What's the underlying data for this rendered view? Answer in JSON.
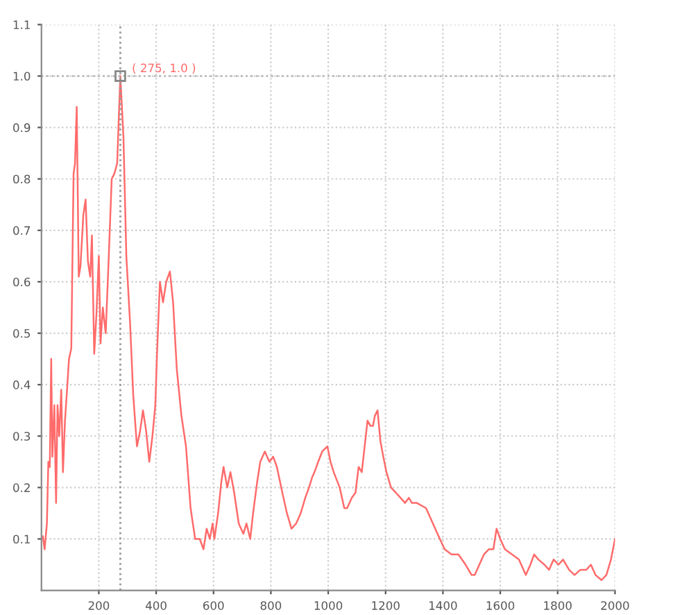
{
  "chart_data": {
    "type": "line",
    "x": [
      5,
      11,
      19,
      24,
      29,
      34,
      38,
      45,
      51,
      56,
      62,
      69,
      75,
      82,
      88,
      96,
      104,
      112,
      117,
      123,
      130,
      136,
      146,
      154,
      162,
      170,
      176,
      184,
      192,
      200,
      206,
      214,
      224,
      232,
      245,
      254,
      264,
      275,
      286,
      296,
      309,
      320,
      333,
      344,
      354,
      365,
      376,
      387,
      397,
      403,
      413,
      424,
      435,
      448,
      459,
      472,
      488,
      504,
      520,
      536,
      552,
      565,
      576,
      587,
      597,
      603,
      616,
      627,
      635,
      648,
      659,
      672,
      688,
      704,
      715,
      728,
      738,
      752,
      763,
      779,
      795,
      808,
      821,
      840,
      856,
      872,
      888,
      904,
      920,
      933,
      944,
      952,
      965,
      979,
      997,
      1008,
      1019,
      1040,
      1056,
      1066,
      1082,
      1095,
      1106,
      1117,
      1127,
      1137,
      1147,
      1156,
      1163,
      1172,
      1182,
      1192,
      1203,
      1219,
      1236,
      1252,
      1268,
      1281,
      1292,
      1309,
      1341,
      1357,
      1381,
      1406,
      1430,
      1454,
      1479,
      1500,
      1511,
      1527,
      1543,
      1560,
      1576,
      1587,
      1600,
      1616,
      1641,
      1665,
      1689,
      1705,
      1718,
      1733,
      1754,
      1770,
      1786,
      1803,
      1819,
      1840,
      1859,
      1879,
      1900,
      1916,
      1932,
      1953,
      1970,
      1986,
      2000
    ],
    "series": [
      {
        "color": "#ff6b6b",
        "values": [
          0.105,
          0.08,
          0.13,
          0.25,
          0.24,
          0.45,
          0.26,
          0.36,
          0.17,
          0.36,
          0.3,
          0.39,
          0.23,
          0.33,
          0.38,
          0.45,
          0.47,
          0.81,
          0.83,
          0.94,
          0.61,
          0.63,
          0.73,
          0.76,
          0.64,
          0.61,
          0.69,
          0.46,
          0.54,
          0.65,
          0.48,
          0.55,
          0.5,
          0.61,
          0.8,
          0.81,
          0.83,
          1.0,
          0.88,
          0.65,
          0.52,
          0.38,
          0.28,
          0.31,
          0.35,
          0.31,
          0.25,
          0.3,
          0.36,
          0.46,
          0.6,
          0.56,
          0.6,
          0.62,
          0.56,
          0.43,
          0.34,
          0.28,
          0.16,
          0.1,
          0.1,
          0.08,
          0.12,
          0.1,
          0.13,
          0.1,
          0.15,
          0.21,
          0.24,
          0.2,
          0.23,
          0.19,
          0.13,
          0.11,
          0.13,
          0.1,
          0.15,
          0.21,
          0.25,
          0.27,
          0.25,
          0.26,
          0.24,
          0.19,
          0.15,
          0.12,
          0.13,
          0.15,
          0.18,
          0.2,
          0.22,
          0.23,
          0.25,
          0.27,
          0.28,
          0.25,
          0.23,
          0.2,
          0.16,
          0.16,
          0.18,
          0.19,
          0.24,
          0.23,
          0.28,
          0.33,
          0.32,
          0.32,
          0.34,
          0.35,
          0.29,
          0.26,
          0.23,
          0.2,
          0.19,
          0.18,
          0.17,
          0.18,
          0.17,
          0.17,
          0.16,
          0.14,
          0.11,
          0.08,
          0.07,
          0.07,
          0.05,
          0.03,
          0.03,
          0.05,
          0.07,
          0.08,
          0.08,
          0.12,
          0.1,
          0.08,
          0.07,
          0.06,
          0.03,
          0.05,
          0.07,
          0.06,
          0.05,
          0.04,
          0.06,
          0.05,
          0.06,
          0.04,
          0.03,
          0.04,
          0.04,
          0.05,
          0.03,
          0.02,
          0.03,
          0.06,
          0.1
        ]
      }
    ],
    "xlim": [
      0,
      2000
    ],
    "xticks": [
      200,
      400,
      600,
      800,
      1000,
      1200,
      1400,
      1600,
      1800,
      2000
    ],
    "ylim": [
      0,
      1.1
    ],
    "yticks": [
      0.1,
      0.2,
      0.3,
      0.4,
      0.5,
      0.6,
      0.7,
      0.8,
      0.9,
      {
        "value": 1,
        "label": "1.0"
      },
      1.1
    ],
    "grid": true,
    "line_style": "solid",
    "marker": "none",
    "ref_lines": [
      {
        "axis": "x",
        "value": 275,
        "color": "#999999",
        "line_style": "dotted"
      },
      {
        "axis": "y",
        "value": 1.0,
        "color": "#bbbbbb",
        "line_style": "dotted"
      }
    ],
    "annotations": [
      {
        "text": "( 275, 1.0 )",
        "x": 275,
        "y": 1.0
      }
    ]
  }
}
